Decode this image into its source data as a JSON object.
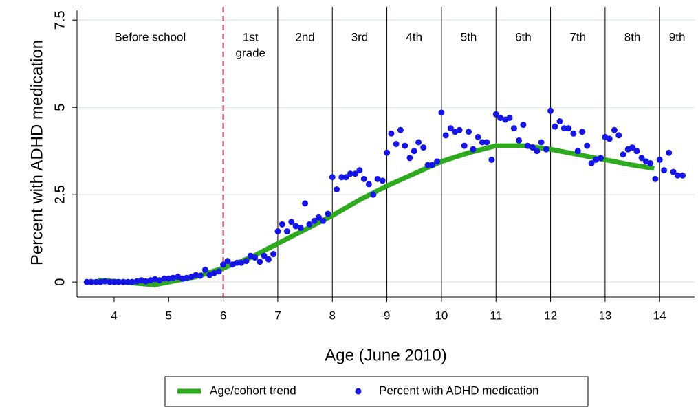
{
  "chart_data": {
    "type": "scatter",
    "x_label": "Age (June 2010)",
    "y_label": "Percent with ADHD medication",
    "xlim": [
      3.32,
      14.64
    ],
    "ylim": [
      -0.43,
      7.78
    ],
    "xticks": [
      4,
      5,
      6,
      7,
      8,
      9,
      10,
      11,
      12,
      13,
      14
    ],
    "yticks": [
      0,
      2.5,
      5,
      7.5
    ],
    "grid": true,
    "school_start": {
      "x": 6,
      "color": "#b8284a"
    },
    "grade_boundaries": [
      7,
      8,
      9,
      10,
      11,
      12,
      13,
      14
    ],
    "grade_labels": [
      [
        "Before school"
      ],
      [
        "1st",
        "grade"
      ],
      [
        "2nd"
      ],
      [
        "3rd"
      ],
      [
        "4th"
      ],
      [
        "5th"
      ],
      [
        "6th"
      ],
      [
        "7th"
      ],
      [
        "8th"
      ],
      [
        "9th"
      ]
    ],
    "legend": "bottom",
    "series": [
      {
        "name": "Age/cohort trend",
        "type": "line",
        "color": "#2eaa1f",
        "x": [
          3.7,
          4,
          4.5,
          4.75,
          5,
          5.5,
          6,
          6.5,
          7,
          7.5,
          8,
          8.5,
          9,
          9.5,
          10,
          10.5,
          11,
          11.5,
          12,
          12.5,
          13,
          13.5,
          13.9
        ],
        "values": [
          0.05,
          0.02,
          -0.05,
          -0.08,
          0,
          0.15,
          0.4,
          0.7,
          1.1,
          1.5,
          1.9,
          2.35,
          2.75,
          3.1,
          3.45,
          3.7,
          3.9,
          3.9,
          3.8,
          3.65,
          3.5,
          3.35,
          3.25
        ]
      },
      {
        "name": "Percent with ADHD medication",
        "type": "scatter",
        "color": "#1515e6",
        "x": [
          3.5,
          3.58,
          3.67,
          3.75,
          3.83,
          3.92,
          4,
          4.08,
          4.17,
          4.25,
          4.33,
          4.42,
          4.5,
          4.58,
          4.67,
          4.75,
          4.83,
          4.92,
          5,
          5.08,
          5.17,
          5.25,
          5.33,
          5.42,
          5.5,
          5.58,
          5.67,
          5.75,
          5.83,
          5.92,
          6,
          6.08,
          6.17,
          6.25,
          6.33,
          6.42,
          6.5,
          6.58,
          6.67,
          6.75,
          6.83,
          6.92,
          7,
          7.08,
          7.17,
          7.25,
          7.33,
          7.42,
          7.5,
          7.58,
          7.67,
          7.75,
          7.83,
          7.92,
          8,
          8.08,
          8.17,
          8.25,
          8.33,
          8.42,
          8.5,
          8.58,
          8.67,
          8.75,
          8.83,
          8.92,
          9,
          9.08,
          9.17,
          9.25,
          9.33,
          9.42,
          9.5,
          9.58,
          9.67,
          9.75,
          9.83,
          9.92,
          10,
          10.08,
          10.17,
          10.25,
          10.33,
          10.42,
          10.5,
          10.58,
          10.67,
          10.75,
          10.83,
          10.92,
          11,
          11.08,
          11.17,
          11.25,
          11.33,
          11.42,
          11.5,
          11.58,
          11.67,
          11.75,
          11.83,
          11.92,
          12,
          12.08,
          12.17,
          12.25,
          12.33,
          12.42,
          12.5,
          12.58,
          12.67,
          12.75,
          12.83,
          12.92,
          13,
          13.08,
          13.17,
          13.25,
          13.33,
          13.42,
          13.5,
          13.58,
          13.67,
          13.75,
          13.83,
          13.92,
          14,
          14.08,
          14.17,
          14.25,
          14.33,
          14.42
        ],
        "values": [
          0,
          0,
          0,
          0,
          0.02,
          0,
          0,
          0,
          0,
          0,
          0,
          0.02,
          0.05,
          0.02,
          0.05,
          0.08,
          0.05,
          0.1,
          0.1,
          0.12,
          0.15,
          0.1,
          0.12,
          0.15,
          0.2,
          0.18,
          0.35,
          0.2,
          0.25,
          0.3,
          0.5,
          0.6,
          0.5,
          0.55,
          0.55,
          0.6,
          0.75,
          0.7,
          0.58,
          0.75,
          0.65,
          0.8,
          1.45,
          1.65,
          1.45,
          1.72,
          1.6,
          1.55,
          2.25,
          1.65,
          1.75,
          1.85,
          1.75,
          1.95,
          3.0,
          2.65,
          3.0,
          3.0,
          3.1,
          3.1,
          3.2,
          2.95,
          2.8,
          2.5,
          2.95,
          2.9,
          3.7,
          4.25,
          3.95,
          4.35,
          3.9,
          3.55,
          3.75,
          4.0,
          3.85,
          3.35,
          3.35,
          3.45,
          4.85,
          4.2,
          4.4,
          4.3,
          4.35,
          3.9,
          4.3,
          3.8,
          4.15,
          4.0,
          4.0,
          3.5,
          4.8,
          4.7,
          4.65,
          4.7,
          4.4,
          4.05,
          4.5,
          3.9,
          3.85,
          3.75,
          4.0,
          3.8,
          4.9,
          4.45,
          4.6,
          4.4,
          4.4,
          4.25,
          3.75,
          4.3,
          3.9,
          3.4,
          3.5,
          3.55,
          4.15,
          4.1,
          4.35,
          4.2,
          3.65,
          3.8,
          3.85,
          3.75,
          3.55,
          3.45,
          3.4,
          2.95,
          3.5,
          3.2,
          3.7,
          3.15,
          3.05,
          3.05
        ]
      }
    ]
  }
}
